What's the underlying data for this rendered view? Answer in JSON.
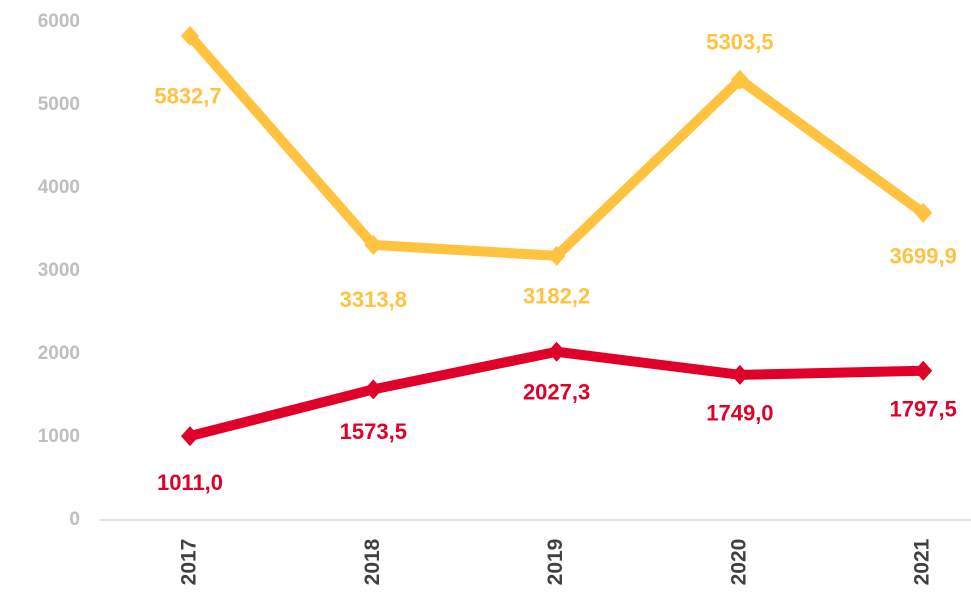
{
  "chart_data": {
    "type": "line",
    "categories": [
      "2017",
      "2018",
      "2019",
      "2020",
      "2021"
    ],
    "series": [
      {
        "color": "#ffc340",
        "values": [
          5832.7,
          3313.8,
          3182.2,
          5303.5,
          3699.9
        ],
        "value_labels": [
          "5832,7",
          "3313,8",
          "3182,2",
          "5303,5",
          "3699,9"
        ]
      },
      {
        "color": "#e0002a",
        "values": [
          1011.0,
          1573.5,
          2027.3,
          1749.0,
          1797.5
        ],
        "value_labels": [
          "1011,0",
          "1573,5",
          "2027,3",
          "1749,0",
          "1797,5"
        ]
      }
    ],
    "ylim": [
      0,
      6000
    ],
    "yticks": [
      0,
      1000,
      2000,
      3000,
      4000,
      5000,
      6000
    ],
    "grid": false
  }
}
